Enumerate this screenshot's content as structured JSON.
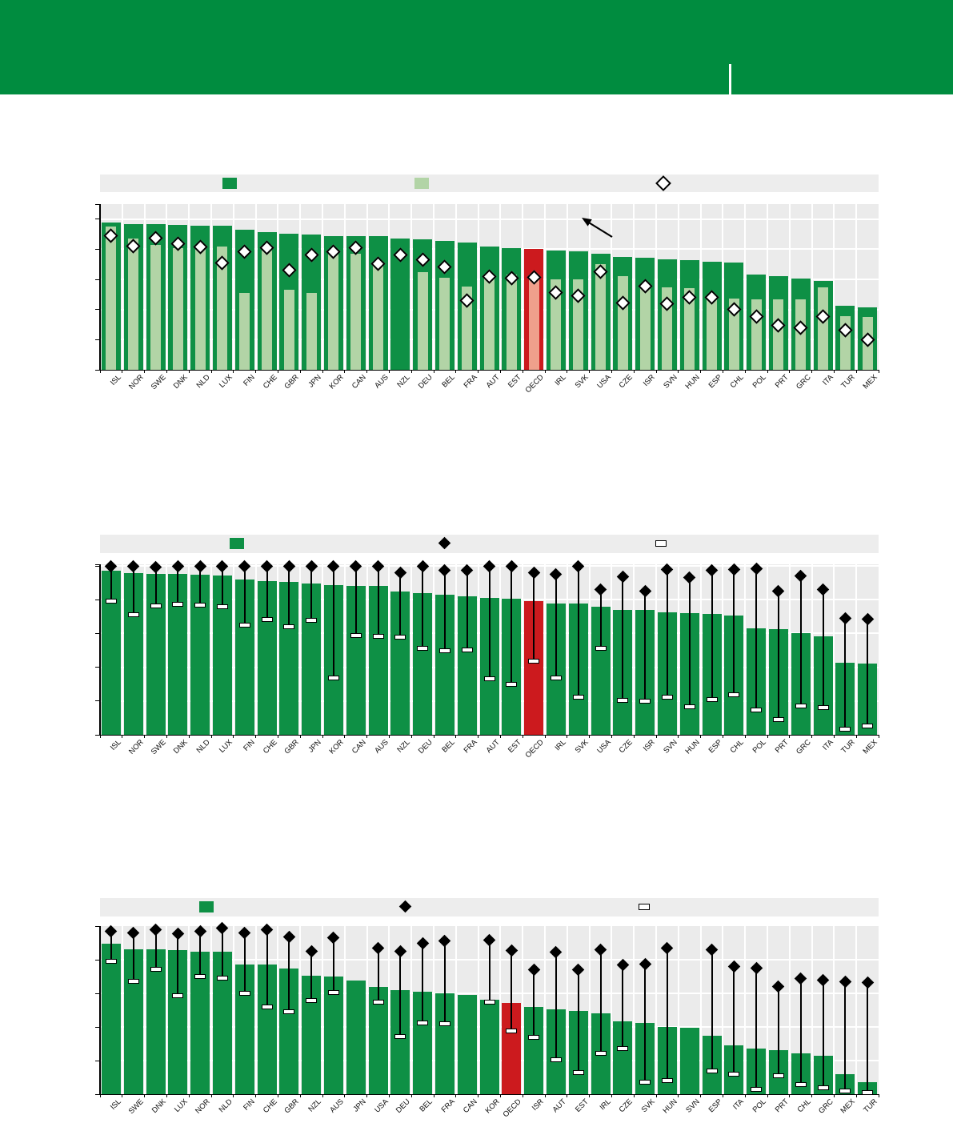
{
  "header": {
    "background_color": "#008c3f",
    "divider_present": true
  },
  "colors": {
    "bar_green": "#0e9045",
    "bar_light_green": "#b2d4a6",
    "bar_red": "#cc1a1e",
    "bar_light_red": "#efa08c",
    "plot_bg": "#ebebeb",
    "legend_bg": "#ededed",
    "grid": "#ffffff",
    "axis": "#000000",
    "marker_fill_white": "#ffffff",
    "marker_black": "#000000"
  },
  "chart_data": [
    {
      "type": "bar",
      "title": "",
      "legend_position": "top",
      "legend_keys": [
        "dark-green-square",
        "light-green-square",
        "open-diamond"
      ],
      "grid": true,
      "ylim": [
        0,
        110
      ],
      "ytick_step": 20,
      "highlight_category": "OECD",
      "annotation": "arrow-up-left",
      "categories": [
        "ISL",
        "NOR",
        "SWE",
        "DNK",
        "NLD",
        "LUX",
        "FIN",
        "CHE",
        "GBR",
        "JPN",
        "KOR",
        "CAN",
        "AUS",
        "NZL",
        "DEU",
        "BEL",
        "FRA",
        "AUT",
        "EST",
        "OECD",
        "IRL",
        "SVK",
        "USA",
        "CZE",
        "ISR",
        "SVN",
        "HUN",
        "ESP",
        "CHL",
        "POL",
        "PRT",
        "GRC",
        "ITA",
        "TUR",
        "MEX"
      ],
      "series": [
        {
          "name": "dark-green-bar",
          "marker": "bar",
          "values": [
            98,
            96.5,
            96.5,
            96,
            95.5,
            95.5,
            93,
            91.5,
            90.5,
            90,
            89,
            88.5,
            88.5,
            87,
            86.5,
            85.5,
            84.5,
            82,
            81,
            80,
            79,
            78.5,
            77,
            75,
            74.5,
            73.5,
            73,
            72,
            71,
            63,
            62,
            60.5,
            59,
            42.5,
            41.5
          ]
        },
        {
          "name": "light-green-inner-bar",
          "marker": "inner",
          "values": [
            95,
            87,
            83,
            81,
            81,
            82,
            51,
            79,
            53,
            51,
            78,
            77,
            69,
            null,
            65,
            61,
            55.5,
            62,
            63,
            63,
            60,
            60,
            70,
            62,
            57,
            55,
            54,
            47.5,
            47.5,
            47,
            47,
            46.5,
            55,
            35.5,
            35
          ]
        },
        {
          "name": "open-diamond-marker",
          "marker": "diamond-open",
          "values": [
            89,
            82,
            87.5,
            83.5,
            81.5,
            71,
            78.5,
            81,
            66,
            76.5,
            78.5,
            81,
            70.5,
            76,
            73,
            68.5,
            46,
            62,
            61,
            61.5,
            51.5,
            49,
            65,
            44.5,
            55.5,
            44,
            48,
            48,
            40,
            35.5,
            29.5,
            28,
            35.5,
            26.5,
            20
          ]
        }
      ]
    },
    {
      "type": "bar",
      "title": "",
      "legend_position": "top",
      "legend_keys": [
        "green-square",
        "black-diamond",
        "white-dash"
      ],
      "grid": true,
      "ylim": [
        0,
        10.1
      ],
      "ytick_step": 2,
      "highlight_category": "OECD",
      "annotation": null,
      "categories": [
        "ISL",
        "NOR",
        "SWE",
        "DNK",
        "NLD",
        "LUX",
        "FIN",
        "CHE",
        "GBR",
        "JPN",
        "KOR",
        "CAN",
        "AUS",
        "NZL",
        "DEU",
        "BEL",
        "FRA",
        "AUT",
        "EST",
        "OECD",
        "IRL",
        "SVK",
        "USA",
        "CZE",
        "ISR",
        "SVN",
        "HUN",
        "ESP",
        "CHL",
        "POL",
        "PRT",
        "GRC",
        "ITA",
        "TUR",
        "MEX"
      ],
      "series": [
        {
          "name": "green-bar",
          "marker": "bar",
          "values": [
            9.7,
            9.6,
            9.55,
            9.55,
            9.5,
            9.45,
            9.2,
            9.1,
            9.05,
            8.95,
            8.85,
            8.8,
            8.8,
            8.5,
            8.4,
            8.3,
            8.2,
            8.1,
            8.05,
            7.9,
            7.8,
            7.8,
            7.6,
            7.4,
            7.4,
            7.25,
            7.2,
            7.15,
            7.05,
            6.3,
            6.25,
            6.0,
            5.85,
            4.25,
            4.2
          ]
        },
        {
          "name": "black-diamond-marker",
          "marker": "diamond",
          "values": [
            10,
            10,
            9.95,
            10,
            10,
            10,
            10,
            10,
            10,
            10,
            10,
            10,
            10,
            9.6,
            10,
            9.75,
            9.75,
            10,
            10,
            9.6,
            9.5,
            10,
            8.6,
            9.35,
            8.5,
            9.8,
            9.3,
            9.75,
            9.8,
            9.85,
            8.5,
            9.4,
            8.6,
            6.9,
            6.85
          ]
        },
        {
          "name": "white-dash-marker",
          "marker": "dash",
          "values": [
            7.9,
            7.1,
            7.65,
            7.75,
            7.7,
            7.6,
            6.5,
            6.85,
            6.4,
            6.8,
            3.35,
            5.9,
            5.85,
            5.8,
            5.1,
            5.0,
            5.05,
            3.3,
            3.0,
            4.35,
            3.35,
            2.25,
            5.1,
            2.05,
            2.0,
            2.25,
            1.65,
            2.1,
            2.35,
            1.45,
            0.9,
            1.7,
            1.6,
            0.35,
            0.5
          ]
        }
      ]
    },
    {
      "type": "bar",
      "title": "",
      "legend_position": "top",
      "legend_keys": [
        "green-square",
        "black-diamond",
        "white-dash"
      ],
      "grid": true,
      "ylim": [
        0,
        10
      ],
      "ytick_step": 2,
      "highlight_category": "OECD",
      "annotation": null,
      "categories": [
        "ISL",
        "SWE",
        "DNK",
        "LUX",
        "NOR",
        "NLD",
        "FIN",
        "CHE",
        "GBR",
        "NZL",
        "AUS",
        "JPN",
        "USA",
        "DEU",
        "BEL",
        "FRA",
        "CAN",
        "KOR",
        "OECD",
        "ISR",
        "AUT",
        "EST",
        "IRL",
        "CZE",
        "SVK",
        "HUN",
        "SVN",
        "ESP",
        "ITA",
        "POL",
        "PRT",
        "CHL",
        "GRC",
        "MEX",
        "TUR"
      ],
      "series": [
        {
          "name": "green-bar",
          "marker": "bar",
          "values": [
            8.95,
            8.6,
            8.6,
            8.55,
            8.5,
            8.5,
            7.7,
            7.7,
            7.5,
            7.05,
            7.0,
            6.75,
            6.4,
            6.2,
            6.1,
            6.0,
            5.9,
            5.6,
            5.45,
            5.2,
            5.05,
            4.95,
            4.8,
            4.35,
            4.25,
            4.0,
            3.95,
            3.5,
            2.9,
            2.7,
            2.6,
            2.45,
            2.3,
            1.2,
            0.7
          ]
        },
        {
          "name": "black-diamond-marker",
          "marker": "diamond",
          "values": [
            9.7,
            9.6,
            9.8,
            9.55,
            9.7,
            9.9,
            9.6,
            9.8,
            9.35,
            8.5,
            9.3,
            null,
            8.7,
            8.5,
            9.0,
            9.1,
            null,
            9.15,
            8.55,
            7.4,
            8.45,
            7.4,
            8.6,
            7.7,
            7.75,
            8.7,
            null,
            8.6,
            7.6,
            7.5,
            6.4,
            6.9,
            6.8,
            6.7,
            6.65
          ]
        },
        {
          "name": "white-dash-marker",
          "marker": "dash",
          "values": [
            7.9,
            6.7,
            7.45,
            5.85,
            7.0,
            6.9,
            6.0,
            5.2,
            4.9,
            5.55,
            6.05,
            null,
            5.5,
            3.45,
            4.25,
            4.2,
            null,
            5.5,
            3.75,
            3.4,
            2.05,
            1.3,
            2.45,
            2.7,
            0.7,
            0.8,
            null,
            1.4,
            1.2,
            0.3,
            1.1,
            0.55,
            0.4,
            0.2,
            0.1
          ]
        }
      ]
    }
  ]
}
